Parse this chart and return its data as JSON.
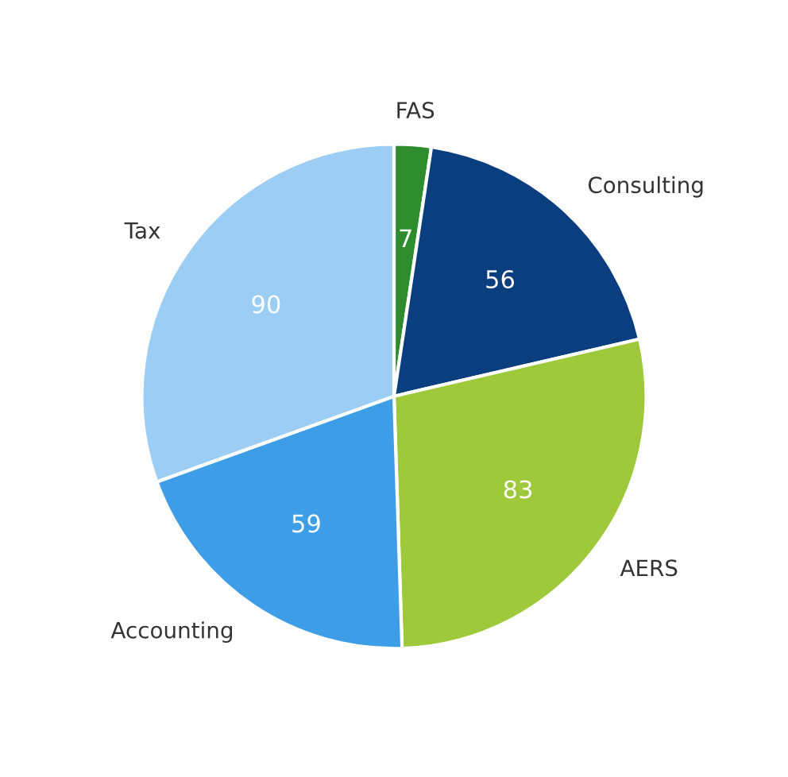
{
  "chart_data": {
    "type": "pie",
    "categories": [
      "FAS",
      "Consulting",
      "AERS",
      "Accounting",
      "Tax"
    ],
    "values": [
      7,
      56,
      83,
      59,
      90
    ],
    "colors": [
      "#2e8b2e",
      "#0b3e7f",
      "#9dc93a",
      "#3d9de6",
      "#9ccdf4"
    ],
    "data_labels": true
  }
}
